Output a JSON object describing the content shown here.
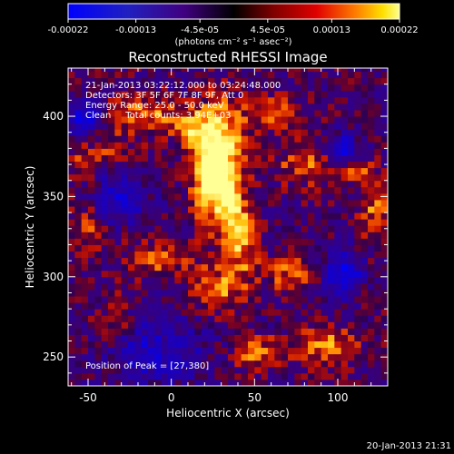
{
  "chart_data": {
    "type": "heatmap",
    "title": "Reconstructed RHESSI Image",
    "xlabel": "Heliocentric X (arcsec)",
    "ylabel": "Heliocentric Y (arcsec)",
    "xlim": [
      -62,
      130
    ],
    "ylim": [
      232,
      430
    ],
    "x_ticks": [
      -50,
      0,
      50,
      100
    ],
    "y_ticks": [
      250,
      300,
      350,
      400
    ],
    "colorbar": {
      "ticks": [
        "-0.00022",
        "-0.00013",
        "-4.5e-05",
        "4.5e-05",
        "0.00013",
        "0.00022"
      ],
      "tick_values": [
        -0.00022,
        -0.00013,
        -4.5e-05,
        4.5e-05,
        0.00013,
        0.00022
      ],
      "range": [
        -0.00022,
        0.00022
      ],
      "units_label": "(photons cm⁻² s⁻¹ asec⁻²)"
    },
    "annotations": [
      "21-Jan-2013 03:22:12.000 to 03:24:48.000",
      "Detectors: 3F 5F 6F 7F 8F 9F, Att 0",
      "Energy Range: 25.0 - 50.0 keV",
      "Clean     Total counts: 3.94E+03"
    ],
    "peak_label": "Position of Peak = [27,380]",
    "peak_position": [
      27,
      380
    ],
    "grid": "off",
    "legend": "colorbar-top"
  },
  "footer_timestamp": "20-Jan-2013 21:31",
  "colors": {
    "background": "#000000",
    "scale_low": "#0000ff",
    "scale_mid": "#000000",
    "scale_high": "#ffff88"
  }
}
